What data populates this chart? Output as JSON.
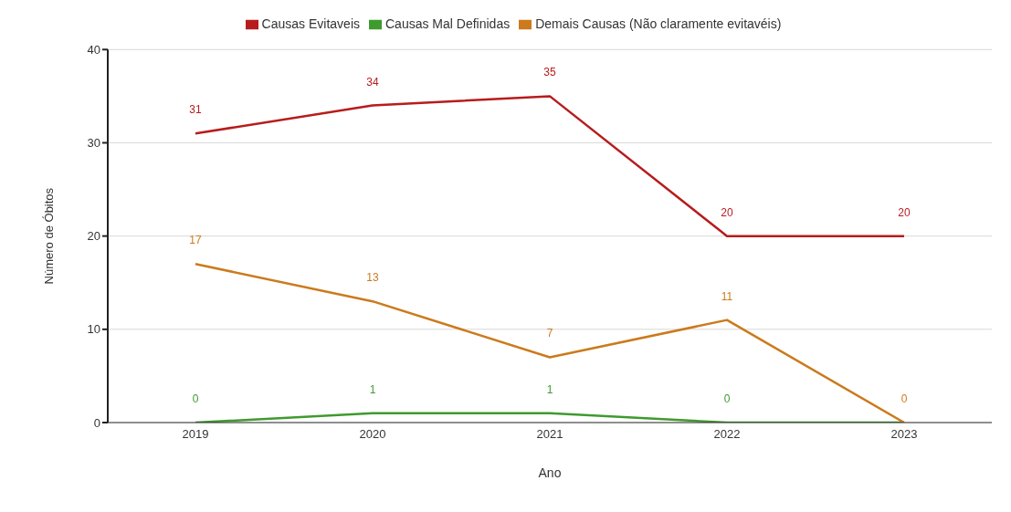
{
  "chart_data": {
    "type": "line",
    "xlabel": "Ano",
    "ylabel": "Número de Óbitos",
    "categories": [
      "2019",
      "2020",
      "2021",
      "2022",
      "2023"
    ],
    "series": [
      {
        "name": "Causas Evitaveis",
        "color": "#b71c1c",
        "values": [
          31,
          34,
          35,
          20,
          20
        ],
        "value_labels": [
          "31",
          "34",
          "35",
          "20",
          "20"
        ]
      },
      {
        "name": "Causas Mal Definidas",
        "color": "#3f9a2f",
        "values": [
          0,
          1,
          1,
          0,
          0
        ],
        "value_labels": [
          "0",
          "1",
          "1",
          "0",
          null
        ]
      },
      {
        "name": "Demais Causas (Não claramente evitavéis)",
        "color": "#cc7a1c",
        "values": [
          17,
          13,
          7,
          11,
          0
        ],
        "value_labels": [
          "17",
          "13",
          "7",
          "11",
          "0"
        ]
      }
    ],
    "ylim": [
      0,
      40
    ],
    "yticks": [
      0,
      10,
      20,
      30,
      40
    ],
    "grid": "y",
    "legend": "top",
    "marker": "none",
    "line_style": "solid"
  }
}
